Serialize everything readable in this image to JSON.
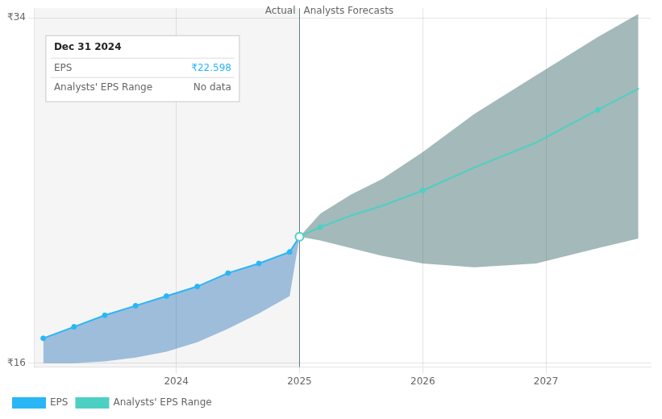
{
  "chart_data": {
    "type": "line",
    "xlim": [
      2022.85,
      2027.85
    ],
    "xticks": [
      2024,
      2025,
      2026,
      2027
    ],
    "ylim": [
      15.8,
      34.5
    ],
    "yticks": [
      {
        "value": 16,
        "label": "₹16"
      },
      {
        "value": 34,
        "label": "₹34"
      }
    ],
    "grid": true,
    "legend": "bottom left",
    "series": [
      {
        "name": "EPS",
        "color": "#29b6f6",
        "x": [
          2022.92,
          2023.17,
          2023.42,
          2023.67,
          2023.92,
          2024.17,
          2024.42,
          2024.67,
          2024.92,
          2025.0
        ],
        "values": [
          17.3,
          17.9,
          18.5,
          19.0,
          19.5,
          20.0,
          20.7,
          21.2,
          21.8,
          22.598
        ],
        "marker": "circle",
        "marker_x": [
          2022.92,
          2023.17,
          2023.42,
          2023.67,
          2023.92,
          2024.17,
          2024.42,
          2024.67,
          2024.92
        ],
        "marker_values": [
          17.3,
          17.9,
          18.5,
          19.0,
          19.5,
          20.0,
          20.7,
          21.2,
          21.8
        ],
        "band": {
          "lower": [
            16.0,
            16.0,
            16.1,
            16.3,
            16.6,
            17.1,
            17.8,
            18.6,
            19.5,
            22.598
          ],
          "upper": [
            17.3,
            17.9,
            18.5,
            19.0,
            19.5,
            20.0,
            20.7,
            21.2,
            21.8,
            22.598
          ],
          "color": "#1a6ab5"
        }
      },
      {
        "name": "Analysts' EPS Range",
        "color": "#4dd0c4",
        "x": [
          2025.0,
          2025.17,
          2025.42,
          2025.67,
          2026.0,
          2026.42,
          2026.92,
          2027.42,
          2027.75
        ],
        "values": [
          22.598,
          23.1,
          23.7,
          24.2,
          25.0,
          26.2,
          27.5,
          29.2,
          30.3
        ],
        "marker": "circle",
        "marker_x": [
          2025.17,
          2026.0,
          2027.42
        ],
        "marker_values": [
          23.1,
          25.0,
          29.2
        ],
        "band": {
          "lower": [
            22.598,
            22.4,
            22.0,
            21.6,
            21.2,
            21.0,
            21.2,
            22.0,
            22.5
          ],
          "upper": [
            22.598,
            23.8,
            24.8,
            25.6,
            27.0,
            29.0,
            31.0,
            33.0,
            34.2
          ],
          "color": "#1b5050"
        }
      }
    ],
    "junction": {
      "x": 2025.0,
      "y": 22.598
    },
    "divider": 2025.0,
    "divider_color": "#607d8b",
    "annotations": [
      {
        "text": "Actual",
        "x": 2025.0,
        "y": 34.1
      },
      {
        "text": "Analysts Forecasts",
        "x": 2025.0,
        "y": 34.1
      }
    ],
    "tooltip": {
      "title": "Dec 31 2024",
      "rows": [
        {
          "label": "EPS",
          "value": "₹22.598"
        },
        {
          "label": "Analysts' EPS Range",
          "value": "No data"
        }
      ]
    }
  }
}
